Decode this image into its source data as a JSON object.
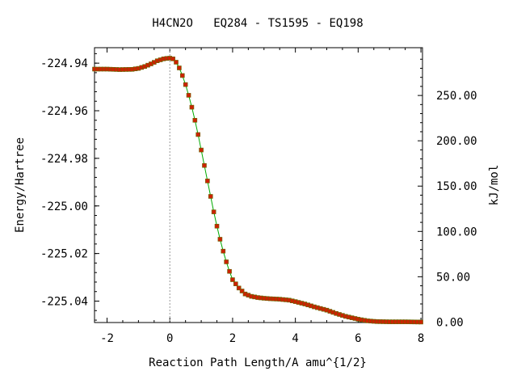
{
  "chart_data": {
    "type": "line",
    "title": "H4CN2O   EQ284 - TS1595 - EQ198",
    "xlabel": "Reaction Path Length/A amu^{1/2}",
    "ylabel": "Energy/Hartree",
    "y2label": "kJ/mol",
    "xlim": [
      -2.4,
      8.05
    ],
    "ylim": [
      -225.049,
      -224.9335
    ],
    "x_ticks": [
      "-2",
      "0",
      "2",
      "4",
      "6",
      "8"
    ],
    "y_ticks": [
      "-224.94",
      "-224.96",
      "-224.98",
      "-225.00",
      "-225.02",
      "-225.04"
    ],
    "y2_ticks": [
      "0.00",
      "50.00",
      "100.00",
      "150.00",
      "200.00",
      "250.00"
    ],
    "y2_zero_hartree": -225.0488,
    "ts_x": 0,
    "colors": {
      "line": "#00aa00",
      "marker": "#cc2200",
      "marker_edge": "#666600",
      "ts_line": "#999999"
    },
    "series": [
      {
        "x": [
          -2.4,
          -2.0,
          -1.6,
          -1.2,
          -1.0,
          -0.8,
          -0.6,
          -0.4,
          -0.2,
          -0.1,
          0.0,
          0.1,
          0.2,
          0.3,
          0.4,
          0.5,
          0.6,
          0.7,
          0.8,
          0.9,
          1.0,
          1.1,
          1.2,
          1.3,
          1.4,
          1.5,
          1.6,
          1.7,
          1.8,
          1.9,
          2.0,
          2.2,
          2.4,
          2.6,
          2.8,
          3.0,
          3.2,
          3.5,
          3.8,
          4.0,
          4.3,
          4.6,
          5.0,
          5.3,
          5.6,
          6.0,
          6.3,
          6.6,
          7.0,
          7.5,
          8.0
        ],
        "y": [
          -224.9425,
          -224.9425,
          -224.9427,
          -224.9426,
          -224.9422,
          -224.9414,
          -224.9403,
          -224.939,
          -224.9382,
          -224.938,
          -224.9379,
          -224.9382,
          -224.9396,
          -224.942,
          -224.9452,
          -224.949,
          -224.9535,
          -224.9585,
          -224.964,
          -224.97,
          -224.9765,
          -224.983,
          -224.9895,
          -224.996,
          -225.0025,
          -225.0085,
          -225.014,
          -225.019,
          -225.0235,
          -225.0275,
          -225.031,
          -225.0345,
          -225.037,
          -225.038,
          -225.0385,
          -225.0388,
          -225.039,
          -225.0392,
          -225.0396,
          -225.0402,
          -225.0412,
          -225.0424,
          -225.0438,
          -225.0452,
          -225.0464,
          -225.0476,
          -225.0483,
          -225.0486,
          -225.0487,
          -225.0487,
          -225.0488
        ]
      }
    ]
  }
}
